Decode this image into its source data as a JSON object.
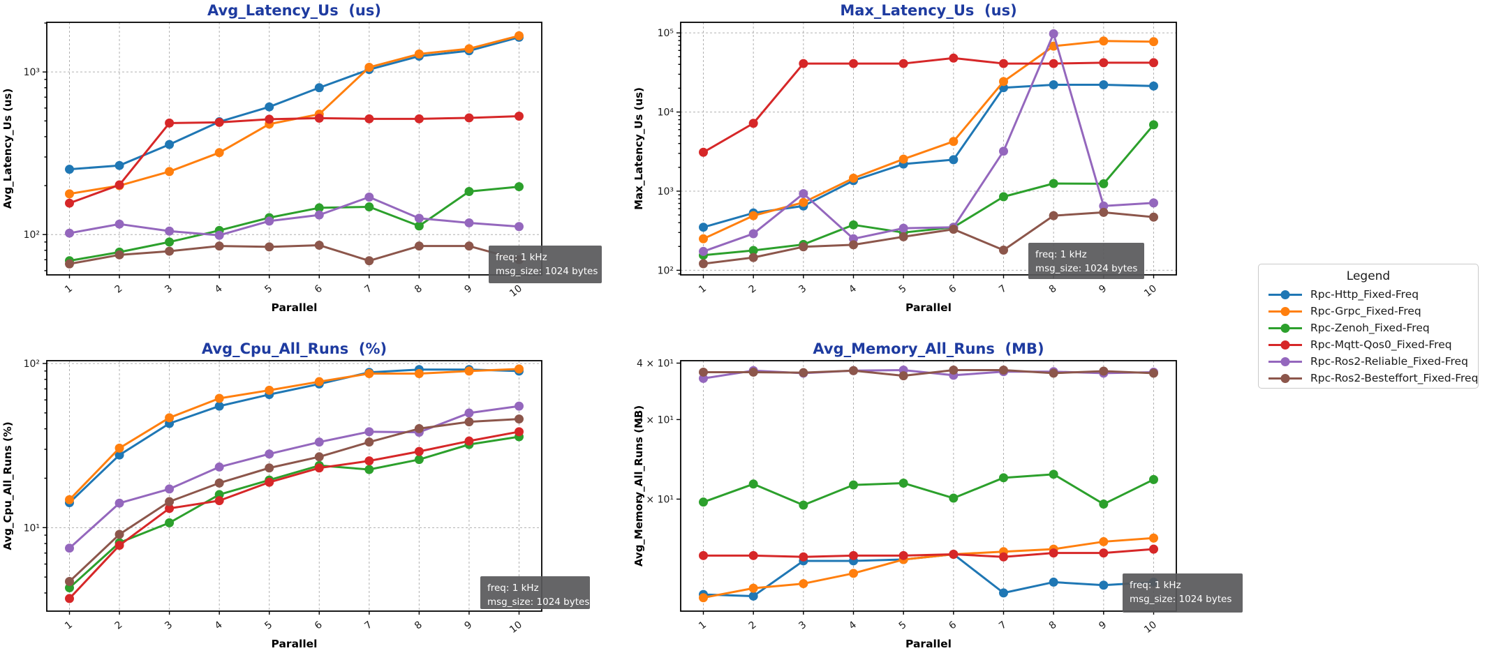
{
  "figure": {
    "title_color": "#1e3ba0",
    "grid_color": "#b0b0b0",
    "spine_color": "#000000",
    "background": "#ffffff"
  },
  "annotation": {
    "lines": [
      "freq: 1 kHz",
      "msg_size: 1024 bytes"
    ],
    "bg": "#58585a",
    "text_color": "#ffffff"
  },
  "legend": {
    "title": "Legend",
    "items": [
      {
        "label": "Rpc-Http_Fixed-Freq",
        "color": "#1f77b4"
      },
      {
        "label": "Rpc-Grpc_Fixed-Freq",
        "color": "#ff7f0e"
      },
      {
        "label": "Rpc-Zenoh_Fixed-Freq",
        "color": "#2ca02c"
      },
      {
        "label": "Rpc-Mqtt-Qos0_Fixed-Freq",
        "color": "#d62728"
      },
      {
        "label": "Rpc-Ros2-Reliable_Fixed-Freq",
        "color": "#9467bd"
      },
      {
        "label": "Rpc-Ros2-Besteffort_Fixed-Freq",
        "color": "#8c564b"
      }
    ]
  },
  "chart_data": [
    {
      "type": "line",
      "title": "Avg_Latency_Us  (us)",
      "ylabel": "Avg_Latency_Us (us)",
      "xlabel": "Parallel",
      "yscale": "log",
      "x": [
        1,
        2,
        3,
        4,
        5,
        6,
        7,
        8,
        9,
        10
      ],
      "ylim": [
        56.5,
        2020
      ],
      "ygrid": true,
      "yticks": [
        {
          "value": 100,
          "label": "10²"
        },
        {
          "value": 1000,
          "label": "10³"
        }
      ],
      "series": [
        {
          "name": "Rpc-Http_Fixed-Freq",
          "color": "#1f77b4",
          "values": [
            252,
            266,
            358,
            494,
            610,
            800,
            1035,
            1250,
            1350,
            1635
          ]
        },
        {
          "name": "Rpc-Grpc_Fixed-Freq",
          "color": "#ff7f0e",
          "values": [
            178,
            200,
            244,
            319,
            478,
            550,
            1068,
            1290,
            1390,
            1670
          ]
        },
        {
          "name": "Rpc-Zenoh_Fixed-Freq",
          "color": "#2ca02c",
          "values": [
            69,
            78,
            90,
            106,
            127,
            146,
            148,
            113,
            184,
            197
          ]
        },
        {
          "name": "Rpc-Mqtt-Qos0_Fixed-Freq",
          "color": "#d62728",
          "values": [
            156,
            202,
            485,
            490,
            512,
            520,
            515,
            515,
            522,
            535
          ]
        },
        {
          "name": "Rpc-Ros2-Reliable_Fixed-Freq",
          "color": "#9467bd",
          "values": [
            102,
            116,
            105,
            99,
            121,
            132,
            170,
            126,
            118,
            112
          ]
        },
        {
          "name": "Rpc-Ros2-Besteffort_Fixed-Freq",
          "color": "#8c564b",
          "values": [
            66,
            75,
            79,
            85,
            84,
            86,
            69,
            85,
            85,
            70
          ]
        }
      ]
    },
    {
      "type": "line",
      "title": "Max_Latency_Us  (us)",
      "ylabel": "Max_Latency_Us (us)",
      "xlabel": "Parallel",
      "yscale": "log",
      "x": [
        1,
        2,
        3,
        4,
        5,
        6,
        7,
        8,
        9,
        10
      ],
      "ylim": [
        87.5,
        136000
      ],
      "ygrid": true,
      "yticks": [
        {
          "value": 100,
          "label": "10²"
        },
        {
          "value": 1000,
          "label": "10³"
        },
        {
          "value": 10000,
          "label": "10⁴"
        },
        {
          "value": 100000,
          "label": "10⁵"
        }
      ],
      "series": [
        {
          "name": "Rpc-Http_Fixed-Freq",
          "color": "#1f77b4",
          "values": [
            350,
            530,
            650,
            1360,
            2200,
            2500,
            20300,
            22100,
            22100,
            21300
          ]
        },
        {
          "name": "Rpc-Grpc_Fixed-Freq",
          "color": "#ff7f0e",
          "values": [
            250,
            490,
            720,
            1460,
            2540,
            4250,
            24300,
            68000,
            79000,
            77500
          ]
        },
        {
          "name": "Rpc-Zenoh_Fixed-Freq",
          "color": "#2ca02c",
          "values": [
            155,
            178,
            212,
            375,
            300,
            350,
            850,
            1250,
            1240,
            6900
          ]
        },
        {
          "name": "Rpc-Mqtt-Qos0_Fixed-Freq",
          "color": "#d62728",
          "values": [
            3100,
            7200,
            41000,
            41000,
            41000,
            48000,
            41000,
            41000,
            42000,
            42000
          ]
        },
        {
          "name": "Rpc-Ros2-Reliable_Fixed-Freq",
          "color": "#9467bd",
          "values": [
            173,
            290,
            930,
            250,
            340,
            350,
            3200,
            97500,
            650,
            710
          ]
        },
        {
          "name": "Rpc-Ros2-Besteffort_Fixed-Freq",
          "color": "#8c564b",
          "values": [
            121,
            145,
            198,
            210,
            265,
            330,
            180,
            490,
            540,
            470
          ]
        }
      ]
    },
    {
      "type": "line",
      "title": "Avg_Cpu_All_Runs  (%)",
      "ylabel": "Avg_Cpu_All_Runs (%)",
      "xlabel": "Parallel",
      "yscale": "log",
      "x": [
        1,
        2,
        3,
        4,
        5,
        6,
        7,
        8,
        9,
        10
      ],
      "ylim": [
        3.1,
        104
      ],
      "ygrid": true,
      "yticks": [
        {
          "value": 10,
          "label": "10¹"
        },
        {
          "value": 100,
          "label": "10²"
        }
      ],
      "series": [
        {
          "name": "Rpc-Http_Fixed-Freq",
          "color": "#1f77b4",
          "values": [
            14.2,
            27.7,
            43.1,
            55.0,
            64.7,
            75.0,
            88.3,
            91.8,
            91.8,
            89.9
          ]
        },
        {
          "name": "Rpc-Grpc_Fixed-Freq",
          "color": "#ff7f0e",
          "values": [
            14.8,
            30.5,
            46.7,
            61.3,
            68.7,
            77.5,
            86.8,
            86.8,
            89.9,
            92.6
          ]
        },
        {
          "name": "Rpc-Zenoh_Fixed-Freq",
          "color": "#2ca02c",
          "values": [
            4.3,
            8.1,
            10.7,
            15.9,
            19.5,
            23.9,
            22.6,
            26.0,
            32.1,
            35.8
          ]
        },
        {
          "name": "Rpc-Mqtt-Qos0_Fixed-Freq",
          "color": "#d62728",
          "values": [
            3.7,
            7.8,
            13.1,
            14.6,
            18.9,
            23.1,
            25.5,
            29.1,
            33.7,
            38.4
          ]
        },
        {
          "name": "Rpc-Ros2-Reliable_Fixed-Freq",
          "color": "#9467bd",
          "values": [
            7.5,
            14.1,
            17.2,
            23.4,
            28.1,
            33.2,
            38.4,
            38.1,
            49.9,
            55.0
          ]
        },
        {
          "name": "Rpc-Ros2-Besteffort_Fixed-Freq",
          "color": "#8c564b",
          "values": [
            4.7,
            9.1,
            14.4,
            18.7,
            23.1,
            27.0,
            33.2,
            40.1,
            44.1,
            45.9
          ]
        }
      ]
    },
    {
      "type": "line",
      "title": "Avg_Memory_All_Runs  (MB)",
      "ylabel": "Avg_Memory_All_Runs (MB)",
      "xlabel": "Parallel",
      "yscale": "log",
      "x": [
        1,
        2,
        3,
        4,
        5,
        6,
        7,
        8,
        9,
        10
      ],
      "ylim": [
        11.3,
        40.5
      ],
      "ygrid": false,
      "yticks": [
        {
          "value": 20,
          "label": "2 × 10¹"
        },
        {
          "value": 30,
          "label": "3 × 10¹"
        },
        {
          "value": 40,
          "label": "4 × 10¹"
        }
      ],
      "series": [
        {
          "name": "Rpc-Http_Fixed-Freq",
          "color": "#1f77b4",
          "values": [
            12.3,
            12.2,
            14.6,
            14.6,
            14.7,
            15.1,
            12.4,
            13.1,
            12.9,
            13.1
          ]
        },
        {
          "name": "Rpc-Grpc_Fixed-Freq",
          "color": "#ff7f0e",
          "values": [
            12.1,
            12.7,
            13.0,
            13.7,
            14.7,
            15.1,
            15.3,
            15.5,
            16.1,
            16.4
          ]
        },
        {
          "name": "Rpc-Zenoh_Fixed-Freq",
          "color": "#2ca02c",
          "values": [
            19.7,
            21.6,
            19.4,
            21.5,
            21.7,
            20.1,
            22.3,
            22.7,
            19.5,
            22.1
          ]
        },
        {
          "name": "Rpc-Mqtt-Qos0_Fixed-Freq",
          "color": "#d62728",
          "values": [
            15.0,
            15.0,
            14.9,
            15.0,
            15.0,
            15.1,
            14.9,
            15.2,
            15.2,
            15.5
          ]
        },
        {
          "name": "Rpc-Ros2-Reliable_Fixed-Freq",
          "color": "#9467bd",
          "values": [
            37.0,
            38.5,
            38.0,
            38.5,
            38.6,
            37.6,
            38.3,
            38.3,
            38.0,
            38.2
          ]
        },
        {
          "name": "Rpc-Ros2-Besteffort_Fixed-Freq",
          "color": "#8c564b",
          "values": [
            38.2,
            38.2,
            38.1,
            38.5,
            37.5,
            38.6,
            38.6,
            38.0,
            38.4,
            38.0
          ]
        }
      ]
    }
  ]
}
